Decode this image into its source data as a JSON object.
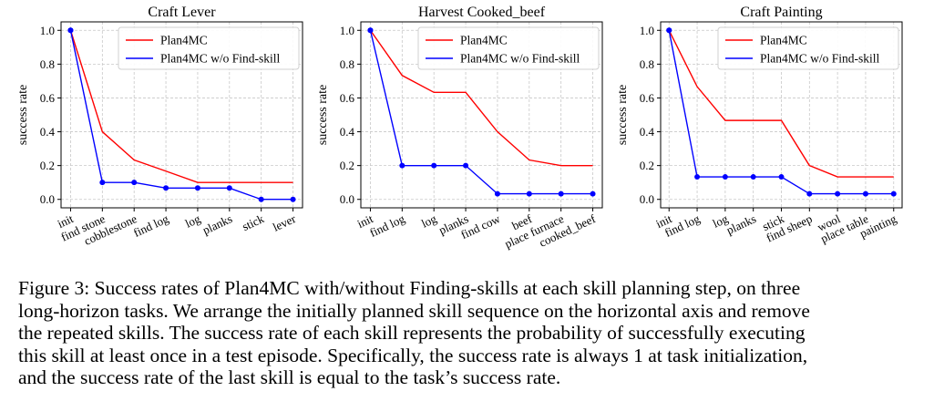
{
  "chart_data": [
    {
      "type": "line",
      "title": "Craft Lever",
      "xlabel": "",
      "ylabel": "success rate",
      "categories": [
        "init",
        "find stone",
        "cobblestone",
        "find log",
        "log",
        "planks",
        "stick",
        "lever"
      ],
      "ylim": [
        -0.05,
        1.05
      ],
      "yticks": [
        "0.0",
        "0.2",
        "0.4",
        "0.6",
        "0.8",
        "1.0"
      ],
      "grid": true,
      "legend": "top-right",
      "series": [
        {
          "name": "Plan4MC",
          "color": "#ff0000",
          "values": [
            1.0,
            0.4,
            0.233,
            0.167,
            0.1,
            0.1,
            0.1,
            0.1
          ]
        },
        {
          "name": "Plan4MC w/o Find-skill",
          "color": "#0000ff",
          "values": [
            1.0,
            0.1,
            0.1,
            0.067,
            0.067,
            0.067,
            0.0,
            0.0
          ]
        }
      ]
    },
    {
      "type": "line",
      "title": "Harvest Cooked_beef",
      "xlabel": "",
      "ylabel": "success rate",
      "categories": [
        "init",
        "find log",
        "log",
        "planks",
        "find cow",
        "beef",
        "place furnace",
        "cooked_beef"
      ],
      "ylim": [
        -0.05,
        1.05
      ],
      "yticks": [
        "0.0",
        "0.2",
        "0.4",
        "0.6",
        "0.8",
        "1.0"
      ],
      "grid": true,
      "legend": "top-right",
      "series": [
        {
          "name": "Plan4MC",
          "color": "#ff0000",
          "values": [
            1.0,
            0.733,
            0.633,
            0.633,
            0.4,
            0.233,
            0.2,
            0.2
          ]
        },
        {
          "name": "Plan4MC w/o Find-skill",
          "color": "#0000ff",
          "values": [
            1.0,
            0.2,
            0.2,
            0.2,
            0.033,
            0.033,
            0.033,
            0.033
          ]
        }
      ]
    },
    {
      "type": "line",
      "title": "Craft Painting",
      "xlabel": "",
      "ylabel": "success rate",
      "categories": [
        "init",
        "find log",
        "log",
        "planks",
        "stick",
        "find sheep",
        "wool",
        "place table",
        "painting"
      ],
      "ylim": [
        -0.05,
        1.05
      ],
      "yticks": [
        "0.0",
        "0.2",
        "0.4",
        "0.6",
        "0.8",
        "1.0"
      ],
      "grid": true,
      "legend": "top-right",
      "series": [
        {
          "name": "Plan4MC",
          "color": "#ff0000",
          "values": [
            1.0,
            0.667,
            0.467,
            0.467,
            0.467,
            0.2,
            0.133,
            0.133,
            0.133
          ]
        },
        {
          "name": "Plan4MC w/o Find-skill",
          "color": "#0000ff",
          "values": [
            1.0,
            0.133,
            0.133,
            0.133,
            0.133,
            0.033,
            0.033,
            0.033,
            0.033
          ]
        }
      ]
    }
  ],
  "caption": {
    "line1": "Figure 3: Success rates of Plan4MC with/without Finding-skills at each skill planning step, on three",
    "line2": "long-horizon tasks. We arrange the initially planned skill sequence on the horizontal axis and remove",
    "line3": "the repeated skills. The success rate of each skill represents the probability of successfully executing",
    "line4": "this skill at least once in a test episode. Specifically, the success rate is always 1 at task initialization,",
    "line5": "and the success rate of the last skill is equal to the task’s success rate."
  }
}
